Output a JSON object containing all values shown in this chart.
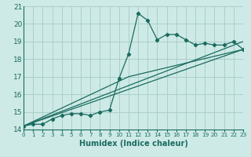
{
  "xlabel": "Humidex (Indice chaleur)",
  "bg_color": "#ceeae6",
  "grid_color": "#aacfca",
  "line_color": "#1a6b60",
  "xlim": [
    0,
    23
  ],
  "ylim": [
    14,
    21
  ],
  "yticks": [
    14,
    15,
    16,
    17,
    18,
    19,
    20,
    21
  ],
  "xtick_labels": [
    "0",
    "1",
    "2",
    "3",
    "4",
    "5",
    "6",
    "7",
    "8",
    "9",
    "10",
    "11",
    "12",
    "13",
    "14",
    "15",
    "16",
    "17",
    "18",
    "19",
    "20",
    "21",
    "22",
    "23"
  ],
  "series_x": [
    0,
    1,
    2,
    3,
    4,
    5,
    6,
    7,
    8,
    9,
    10,
    11,
    12,
    13,
    14,
    15,
    16,
    17,
    18,
    19,
    20,
    21,
    22,
    23
  ],
  "series_y": [
    14.2,
    14.3,
    14.3,
    14.6,
    14.8,
    14.9,
    14.9,
    14.8,
    15.0,
    15.1,
    16.9,
    18.3,
    20.6,
    20.2,
    19.1,
    19.4,
    19.4,
    19.1,
    18.8,
    18.9,
    18.8,
    18.8,
    19.0,
    18.55
  ],
  "line1_x": [
    0,
    23
  ],
  "line1_y": [
    14.2,
    19.0
  ],
  "line2_x": [
    0,
    23
  ],
  "line2_y": [
    14.2,
    18.55
  ],
  "line3_x": [
    0,
    11,
    23
  ],
  "line3_y": [
    14.2,
    17.0,
    18.55
  ]
}
